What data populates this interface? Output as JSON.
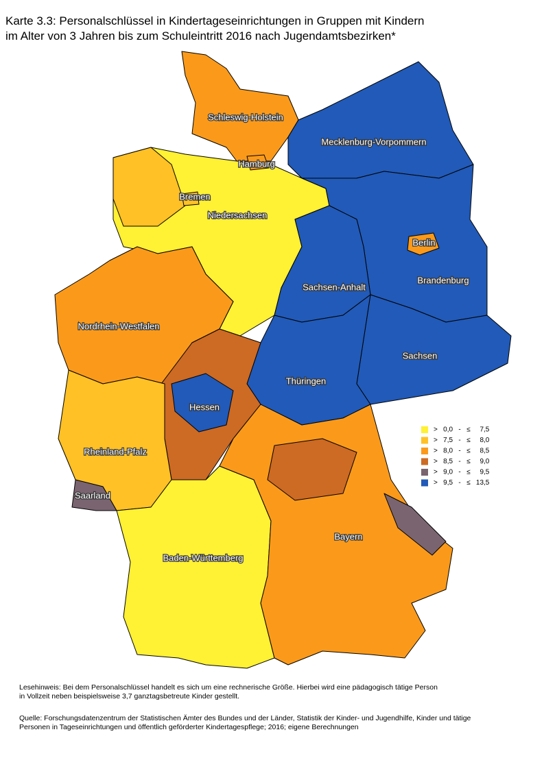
{
  "title": [
    "Karte 3.3: Personalschlüssel in Kindertageseinrichtungen in Gruppen mit Kindern",
    "im Alter von 3 Jahren bis zum Schuleintritt 2016 nach Jugendamtsbezirken*"
  ],
  "states": [
    "Schleswig-Holstein",
    "Hamburg",
    "Mecklenburg-Vorpommern",
    "Bremen",
    "Niedersachsen",
    "Berlin",
    "Brandenburg",
    "Sachsen-Anhalt",
    "Nordrhein-Westfalen",
    "Sachsen",
    "Thüringen",
    "Hessen",
    "Rheinland-Pfalz",
    "Saarland",
    "Bayern",
    "Baden-Württemberg"
  ],
  "legend": [
    {
      "label": ">   0,0   -   ≤     7,5",
      "color": "#fff133"
    },
    {
      "label": ">   7,5   -   ≤     8,0",
      "color": "#ffc125"
    },
    {
      "label": ">   8,0   -   ≤     8,5",
      "color": "#fb9a1a"
    },
    {
      "label": ">   8,5   -   ≤     9,0",
      "color": "#cd6a23"
    },
    {
      "label": ">   9,0   -   ≤     9,5",
      "color": "#7a6470"
    },
    {
      "label": ">   9,5   -   ≤   13,5",
      "color": "#215ab8"
    }
  ],
  "notes": {
    "reading": [
      "Lesehinweis: Bei dem Personalschlüssel handelt es sich um eine rechnerische Größe. Hierbei wird eine pädagogisch tätige Person",
      "in Vollzeit neben beispielsweise 3,7 ganztagsbetreute Kinder gestellt."
    ],
    "source": [
      "Quelle: Forschungsdatenzentrum der Statistischen Ämter des Bundes und der Länder, Statistik der Kinder- und Jugendhilfe, Kinder und tätige",
      "Personen in Tageseinrichtungen und öffentlich geförderter Kindertagespflege; 2016; eigene Berechnungen"
    ]
  }
}
